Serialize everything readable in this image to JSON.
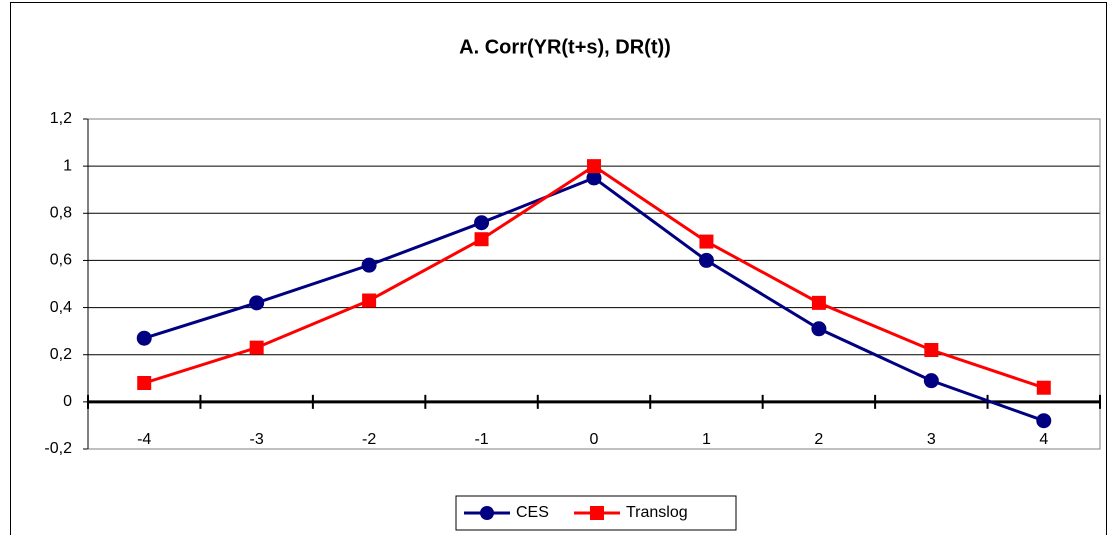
{
  "chart_data": {
    "type": "line",
    "title": "A. Corr(YR(t+s), DR(t))",
    "categories": [
      "-4",
      "-3",
      "-2",
      "-1",
      "0",
      "1",
      "2",
      "3",
      "4"
    ],
    "series": [
      {
        "name": "CES",
        "color": "#000080",
        "values": [
          0.27,
          0.42,
          0.58,
          0.76,
          0.95,
          0.6,
          0.31,
          0.09,
          -0.08
        ]
      },
      {
        "name": "Translog",
        "color": "#ff0000",
        "values": [
          0.08,
          0.23,
          0.43,
          0.69,
          1.0,
          0.68,
          0.42,
          0.22,
          0.06
        ]
      }
    ],
    "ylim": [
      -0.2,
      1.2
    ],
    "yticks": [
      {
        "value": -0.2,
        "label": "-0,2"
      },
      0,
      {
        "value": 0.2,
        "label": "0,2"
      },
      {
        "value": 0.4,
        "label": "0,4"
      },
      {
        "value": 0.6,
        "label": "0,6"
      },
      {
        "value": 0.8,
        "label": "0,8"
      },
      1,
      {
        "value": 1.2,
        "label": "1,2"
      }
    ],
    "grid": true,
    "legend": "bottom"
  }
}
